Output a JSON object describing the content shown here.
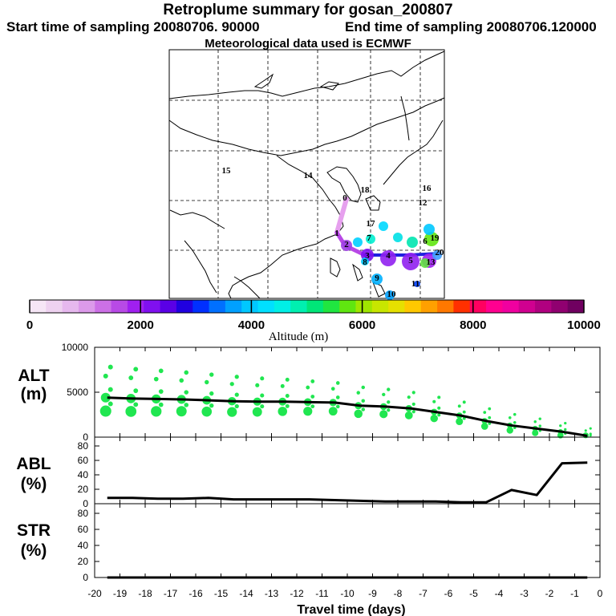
{
  "header": {
    "title": "Retroplume summary for gosan_200807",
    "start": "Start time of sampling 20080706. 90000",
    "end": "End time of sampling 20080706.120000",
    "met": "Meteorological data used is ECMWF"
  },
  "map": {
    "day_labels": [
      "0",
      "1",
      "2",
      "3",
      "4",
      "5",
      "6",
      "7",
      "8",
      "9",
      "10",
      "11",
      "12",
      "13",
      "14",
      "15",
      "16",
      "17",
      "18",
      "19",
      "20"
    ],
    "day_annots": [
      "15",
      "14",
      "18",
      "16",
      "12",
      "10",
      "11"
    ]
  },
  "colorbar": {
    "title": "Altitude (m)",
    "ticks": [
      "0",
      "2000",
      "4000",
      "6000",
      "8000",
      "10000"
    ],
    "colors": [
      "#f6e6f6",
      "#eed2f0",
      "#e6b8ee",
      "#dc9aea",
      "#cc70e6",
      "#b84ae6",
      "#a020f0",
      "#8010f0",
      "#5a00e6",
      "#2000e0",
      "#0030ff",
      "#0070ff",
      "#00a0ff",
      "#00c8ff",
      "#00e0ff",
      "#00f0e6",
      "#00f0b0",
      "#00e678",
      "#20e640",
      "#60e610",
      "#a0e600",
      "#c8e600",
      "#e6e000",
      "#ffc800",
      "#ffa000",
      "#ff7800",
      "#ff3000",
      "#ff0060",
      "#ff0090",
      "#f000a0",
      "#d00090",
      "#b00080",
      "#900070",
      "#700060"
    ]
  },
  "chart_data": [
    {
      "type": "line",
      "title": "ALT",
      "ylabel": "(m)",
      "ylim": [
        0,
        10000
      ],
      "yticks": [
        "0",
        "5000",
        "10000"
      ],
      "x": [
        -19.5,
        -18.5,
        -17.5,
        -16.5,
        -15.5,
        -14.5,
        -13.5,
        -12.5,
        -11.5,
        -10.5,
        -9.5,
        -8.5,
        -7.5,
        -6.5,
        -5.5,
        -4.5,
        -3.5,
        -2.5,
        -1.5,
        -0.5
      ],
      "values": [
        4400,
        4300,
        4250,
        4200,
        4100,
        4000,
        3950,
        3950,
        3900,
        3850,
        3500,
        3400,
        3200,
        2800,
        2400,
        1800,
        1300,
        950,
        600,
        150
      ],
      "scatter_color": "#20e650"
    },
    {
      "type": "line",
      "title": "ABL",
      "ylabel": "(%)",
      "ylim": [
        0,
        90
      ],
      "yticks": [
        "0",
        "20",
        "40",
        "60",
        "80"
      ],
      "x": [
        -19.5,
        -18.5,
        -17.5,
        -16.5,
        -15.5,
        -14.5,
        -13.5,
        -12.5,
        -11.5,
        -10.5,
        -9.5,
        -8.5,
        -7.5,
        -6.5,
        -5.5,
        -4.5,
        -3.5,
        -2.5,
        -1.5,
        -0.5
      ],
      "values": [
        8,
        8,
        7,
        7,
        8,
        6,
        6,
        6,
        6,
        5,
        4,
        3,
        3,
        3,
        2,
        2,
        19,
        12,
        56,
        57
      ]
    },
    {
      "type": "line",
      "title": "STR",
      "ylabel": "(%)",
      "ylim": [
        0,
        90
      ],
      "yticks": [
        "0",
        "20",
        "40",
        "60",
        "80"
      ],
      "x": [
        -19.5,
        -18.5,
        -17.5,
        -16.5,
        -15.5,
        -14.5,
        -13.5,
        -12.5,
        -11.5,
        -10.5,
        -9.5,
        -8.5,
        -7.5,
        -6.5,
        -5.5,
        -4.5,
        -3.5,
        -2.5,
        -1.5,
        -0.5
      ],
      "values": [
        0,
        0,
        0,
        0,
        0,
        0,
        0,
        0,
        0,
        0,
        0,
        0,
        0,
        0,
        0,
        0,
        0,
        0,
        0,
        0
      ]
    }
  ],
  "xaxis": {
    "label": "Travel time (days)",
    "xlim": [
      -20,
      0
    ],
    "ticks": [
      "-20",
      "-19",
      "-18",
      "-17",
      "-16",
      "-15",
      "-14",
      "-13",
      "-12",
      "-11",
      "-10",
      "-9",
      "-8",
      "-7",
      "-6",
      "-5",
      "-4",
      "-3",
      "-2",
      "-1",
      "0"
    ]
  }
}
